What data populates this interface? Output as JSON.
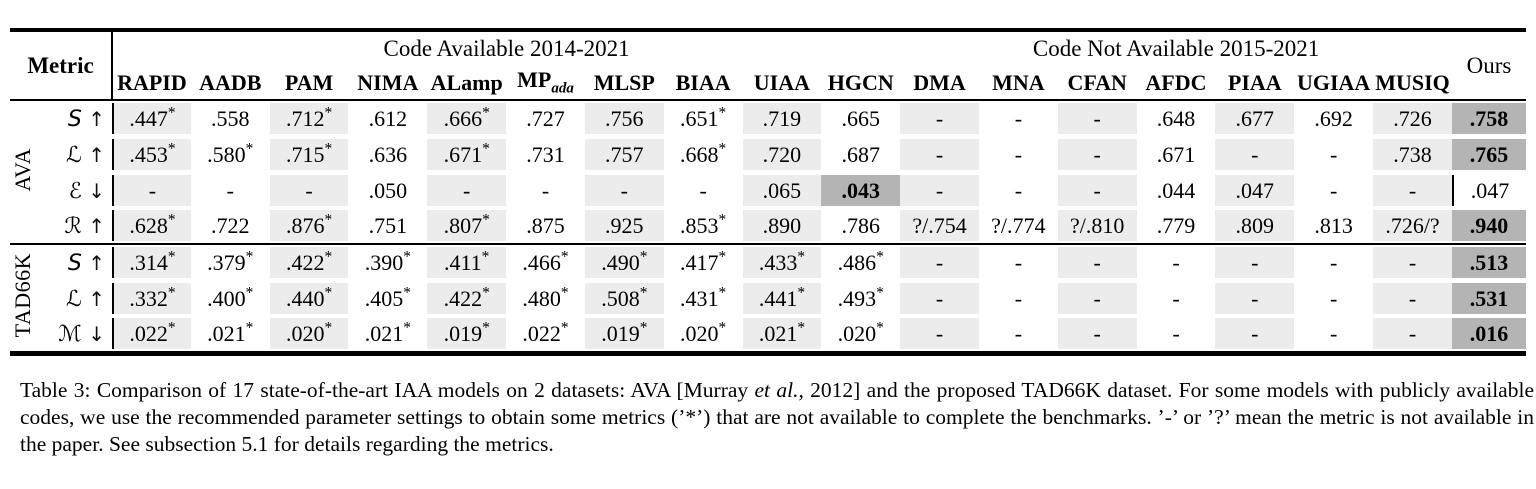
{
  "colors": {
    "stripe": "#ececec",
    "best_bg": "#b4b4b4",
    "rule": "#000000",
    "background": "#ffffff"
  },
  "header": {
    "metric_label": "Metric",
    "groups": [
      {
        "label": "Code Available 2014-2021",
        "span": 10
      },
      {
        "label": "Code Not Available 2015-2021",
        "span": 7
      }
    ],
    "ours_label": "Ours",
    "models": [
      {
        "name": "RAPID"
      },
      {
        "name": "AADB"
      },
      {
        "name": "PAM"
      },
      {
        "name": "NIMA"
      },
      {
        "name": "ALamp"
      },
      {
        "name": "MP",
        "sub": "ada"
      },
      {
        "name": "MLSP"
      },
      {
        "name": "BIAA"
      },
      {
        "name": "UIAA"
      },
      {
        "name": "HGCN"
      },
      {
        "name": "DMA"
      },
      {
        "name": "MNA"
      },
      {
        "name": "CFAN"
      },
      {
        "name": "AFDC"
      },
      {
        "name": "PIAA"
      },
      {
        "name": "UGIAA"
      },
      {
        "name": "MUSIQ"
      }
    ]
  },
  "sections": [
    {
      "dataset": "AVA",
      "rows": [
        {
          "metric": "S",
          "sym": "S",
          "arrow": "↑",
          "values": [
            ".447*",
            ".558",
            ".712*",
            ".612",
            ".666*",
            ".727",
            ".756",
            ".651*",
            ".719",
            ".665",
            "-",
            "-",
            "-",
            ".648",
            ".677",
            ".692",
            ".726",
            ".758"
          ],
          "best_index": 17
        },
        {
          "metric": "L",
          "sym": "ℒ",
          "arrow": "↑",
          "values": [
            ".453*",
            ".580*",
            ".715*",
            ".636",
            ".671*",
            ".731",
            ".757",
            ".668*",
            ".720",
            ".687",
            "-",
            "-",
            "-",
            ".671",
            "-",
            "-",
            ".738",
            ".765"
          ],
          "best_index": 17
        },
        {
          "metric": "E",
          "sym": "ℰ",
          "arrow": "↓",
          "values": [
            "-",
            "-",
            "-",
            ".050",
            "-",
            "-",
            "-",
            "-",
            ".065",
            ".043",
            "-",
            "-",
            "-",
            ".044",
            ".047",
            "-",
            "-",
            ".047"
          ],
          "best_index": 9
        },
        {
          "metric": "R",
          "sym": "ℛ",
          "arrow": "↑",
          "values": [
            ".628*",
            ".722",
            ".876*",
            ".751",
            ".807*",
            ".875",
            ".925",
            ".853*",
            ".890",
            ".786",
            "?/.754",
            "?/.774",
            "?/.810",
            ".779",
            ".809",
            ".813",
            ".726/?",
            ".940"
          ],
          "best_index": 17
        }
      ]
    },
    {
      "dataset": "TAD66K",
      "rows": [
        {
          "metric": "S",
          "sym": "S",
          "arrow": "↑",
          "values": [
            ".314*",
            ".379*",
            ".422*",
            ".390*",
            ".411*",
            ".466*",
            ".490*",
            ".417*",
            ".433*",
            ".486*",
            "-",
            "-",
            "-",
            "-",
            "-",
            "-",
            "-",
            ".513"
          ],
          "best_index": 17
        },
        {
          "metric": "L",
          "sym": "ℒ",
          "arrow": "↑",
          "values": [
            ".332*",
            ".400*",
            ".440*",
            ".405*",
            ".422*",
            ".480*",
            ".508*",
            ".431*",
            ".441*",
            ".493*",
            "-",
            "-",
            "-",
            "-",
            "-",
            "-",
            "-",
            ".531"
          ],
          "best_index": 17
        },
        {
          "metric": "M",
          "sym": "ℳ",
          "arrow": "↓",
          "values": [
            ".022*",
            ".021*",
            ".020*",
            ".021*",
            ".019*",
            ".022*",
            ".019*",
            ".020*",
            ".021*",
            ".020*",
            "-",
            "-",
            "-",
            "-",
            "-",
            "-",
            "-",
            ".016"
          ],
          "best_index": 17
        }
      ]
    }
  ],
  "caption": {
    "segments": [
      {
        "text": "Table 3: Comparison of 17 state-of-the-art IAA models on 2 datasets: AVA [Murray ",
        "italic": false
      },
      {
        "text": "et al.",
        "italic": true
      },
      {
        "text": ", 2012] and the proposed TAD66K dataset. For some models with publicly available codes, we use the recommended parameter settings to obtain some metrics (’*’) that are not available to complete the benchmarks. ’-’ or ’?’ mean the metric is not available in the paper. See subsection 5.1 for details regarding the metrics.",
        "italic": false
      }
    ]
  }
}
